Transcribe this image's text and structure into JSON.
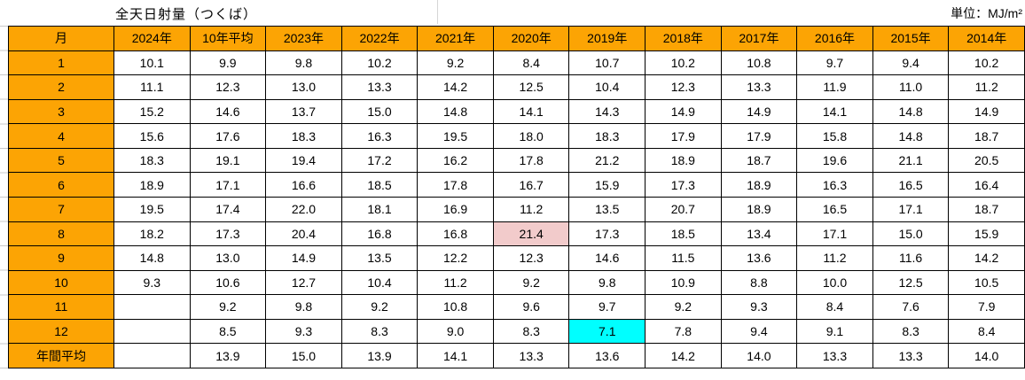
{
  "page": {
    "title": "全天日射量（つくば）",
    "unit_label": "単位：MJ/m²"
  },
  "colors": {
    "header_bg": "#FCA404",
    "max_text": "#FF0000",
    "min_text": "#0000FF",
    "muted_text": "#808080",
    "max_highlight_bg": "#F2CBCB",
    "min_highlight_bg": "#00FFFF",
    "border": "#000000"
  },
  "chart_data": {
    "type": "table",
    "title": "全天日射量（つくば）",
    "unit": "MJ/m²",
    "columns": [
      "月",
      "2024年",
      "10年平均",
      "2023年",
      "2022年",
      "2021年",
      "2020年",
      "2019年",
      "2018年",
      "2017年",
      "2016年",
      "2015年",
      "2014年"
    ],
    "style_legend": {
      "": "plain black",
      "r": "red bold",
      "b": "blue bold",
      "bp": "blue plain",
      "g": "gray",
      "rh": "red bold on pink background",
      "bh": "blue bold on cyan background"
    },
    "rows": [
      {
        "label": "1",
        "cells": [
          [
            "10.1",
            ""
          ],
          [
            "9.9",
            ""
          ],
          [
            "9.8",
            ""
          ],
          [
            "10.2",
            ""
          ],
          [
            "9.2",
            ""
          ],
          [
            "8.4",
            "b"
          ],
          [
            "10.7",
            ""
          ],
          [
            "10.2",
            ""
          ],
          [
            "10.8",
            "r"
          ],
          [
            "9.7",
            ""
          ],
          [
            "9.4",
            ""
          ],
          [
            "10.2",
            ""
          ]
        ]
      },
      {
        "label": "2",
        "cells": [
          [
            "11.1",
            ""
          ],
          [
            "12.3",
            ""
          ],
          [
            "13.0",
            ""
          ],
          [
            "13.3",
            ""
          ],
          [
            "14.2",
            "r"
          ],
          [
            "12.5",
            ""
          ],
          [
            "10.4",
            "b"
          ],
          [
            "12.3",
            ""
          ],
          [
            "13.3",
            ""
          ],
          [
            "11.9",
            ""
          ],
          [
            "11.0",
            ""
          ],
          [
            "11.2",
            ""
          ]
        ]
      },
      {
        "label": "3",
        "cells": [
          [
            "15.2",
            "r"
          ],
          [
            "14.6",
            ""
          ],
          [
            "13.7",
            "b"
          ],
          [
            "15.0",
            "r"
          ],
          [
            "14.8",
            ""
          ],
          [
            "14.1",
            ""
          ],
          [
            "14.3",
            ""
          ],
          [
            "14.9",
            ""
          ],
          [
            "14.9",
            ""
          ],
          [
            "14.1",
            "bp"
          ],
          [
            "14.8",
            ""
          ],
          [
            "14.9",
            ""
          ]
        ]
      },
      {
        "label": "4",
        "cells": [
          [
            "15.6",
            ""
          ],
          [
            "17.6",
            ""
          ],
          [
            "18.3",
            ""
          ],
          [
            "16.3",
            ""
          ],
          [
            "19.5",
            "r"
          ],
          [
            "18.0",
            ""
          ],
          [
            "18.3",
            ""
          ],
          [
            "17.9",
            ""
          ],
          [
            "17.9",
            ""
          ],
          [
            "15.8",
            ""
          ],
          [
            "14.8",
            "b"
          ],
          [
            "18.7",
            ""
          ]
        ]
      },
      {
        "label": "5",
        "cells": [
          [
            "18.3",
            ""
          ],
          [
            "19.1",
            ""
          ],
          [
            "19.4",
            ""
          ],
          [
            "17.2",
            ""
          ],
          [
            "16.2",
            "b"
          ],
          [
            "17.8",
            ""
          ],
          [
            "21.2",
            "r"
          ],
          [
            "18.9",
            ""
          ],
          [
            "18.7",
            ""
          ],
          [
            "19.6",
            ""
          ],
          [
            "21.1",
            ""
          ],
          [
            "20.5",
            ""
          ]
        ]
      },
      {
        "label": "6",
        "cells": [
          [
            "18.9",
            "r"
          ],
          [
            "17.1",
            ""
          ],
          [
            "16.6",
            ""
          ],
          [
            "18.5",
            ""
          ],
          [
            "17.8",
            ""
          ],
          [
            "16.7",
            ""
          ],
          [
            "15.9",
            "b"
          ],
          [
            "17.3",
            ""
          ],
          [
            "18.9",
            "r"
          ],
          [
            "16.3",
            ""
          ],
          [
            "16.5",
            ""
          ],
          [
            "16.4",
            ""
          ]
        ]
      },
      {
        "label": "7",
        "cells": [
          [
            "19.5",
            ""
          ],
          [
            "17.4",
            ""
          ],
          [
            "22.0",
            "r"
          ],
          [
            "18.1",
            ""
          ],
          [
            "16.9",
            ""
          ],
          [
            "11.2",
            "b"
          ],
          [
            "13.5",
            ""
          ],
          [
            "20.7",
            ""
          ],
          [
            "18.9",
            ""
          ],
          [
            "16.5",
            ""
          ],
          [
            "17.1",
            ""
          ],
          [
            "18.7",
            ""
          ]
        ]
      },
      {
        "label": "8",
        "cells": [
          [
            "18.2",
            ""
          ],
          [
            "17.3",
            ""
          ],
          [
            "20.4",
            ""
          ],
          [
            "16.8",
            ""
          ],
          [
            "16.8",
            ""
          ],
          [
            "21.4",
            "rh"
          ],
          [
            "17.3",
            ""
          ],
          [
            "18.5",
            ""
          ],
          [
            "13.4",
            "b"
          ],
          [
            "17.1",
            ""
          ],
          [
            "15.0",
            ""
          ],
          [
            "15.9",
            ""
          ]
        ]
      },
      {
        "label": "9",
        "cells": [
          [
            "14.8",
            ""
          ],
          [
            "13.0",
            ""
          ],
          [
            "14.9",
            "r"
          ],
          [
            "13.5",
            ""
          ],
          [
            "12.2",
            ""
          ],
          [
            "12.3",
            ""
          ],
          [
            "14.6",
            ""
          ],
          [
            "11.5",
            ""
          ],
          [
            "13.6",
            ""
          ],
          [
            "11.2",
            "b"
          ],
          [
            "11.6",
            ""
          ],
          [
            "14.2",
            ""
          ]
        ]
      },
      {
        "label": "10",
        "cells": [
          [
            "9.3",
            ""
          ],
          [
            "10.6",
            ""
          ],
          [
            "12.7",
            "r"
          ],
          [
            "10.4",
            ""
          ],
          [
            "11.2",
            ""
          ],
          [
            "9.2",
            ""
          ],
          [
            "9.8",
            ""
          ],
          [
            "10.9",
            ""
          ],
          [
            "8.8",
            "b"
          ],
          [
            "10.0",
            ""
          ],
          [
            "12.5",
            ""
          ],
          [
            "10.5",
            ""
          ]
        ]
      },
      {
        "label": "11",
        "cells": [
          [
            "",
            ""
          ],
          [
            "9.2",
            ""
          ],
          [
            "9.8",
            ""
          ],
          [
            "9.2",
            ""
          ],
          [
            "10.8",
            "r"
          ],
          [
            "9.6",
            ""
          ],
          [
            "9.7",
            "g"
          ],
          [
            "9.2",
            ""
          ],
          [
            "9.3",
            ""
          ],
          [
            "8.4",
            ""
          ],
          [
            "7.6",
            "b"
          ],
          [
            "7.9",
            ""
          ]
        ]
      },
      {
        "label": "12",
        "cells": [
          [
            "",
            ""
          ],
          [
            "8.5",
            ""
          ],
          [
            "9.3",
            ""
          ],
          [
            "8.3",
            ""
          ],
          [
            "9.0",
            ""
          ],
          [
            "8.3",
            ""
          ],
          [
            "7.1",
            "bh"
          ],
          [
            "7.8",
            ""
          ],
          [
            "9.4",
            "r"
          ],
          [
            "9.1",
            ""
          ],
          [
            "8.3",
            ""
          ],
          [
            "8.4",
            ""
          ]
        ]
      },
      {
        "label": "年間平均",
        "cells": [
          [
            "",
            ""
          ],
          [
            "13.9",
            ""
          ],
          [
            "15.0",
            "r"
          ],
          [
            "13.9",
            ""
          ],
          [
            "14.1",
            ""
          ],
          [
            "13.3",
            "b"
          ],
          [
            "13.6",
            ""
          ],
          [
            "14.2",
            ""
          ],
          [
            "14.0",
            ""
          ],
          [
            "13.3",
            "b"
          ],
          [
            "13.3",
            "b"
          ],
          [
            "14.0",
            ""
          ]
        ]
      }
    ]
  }
}
